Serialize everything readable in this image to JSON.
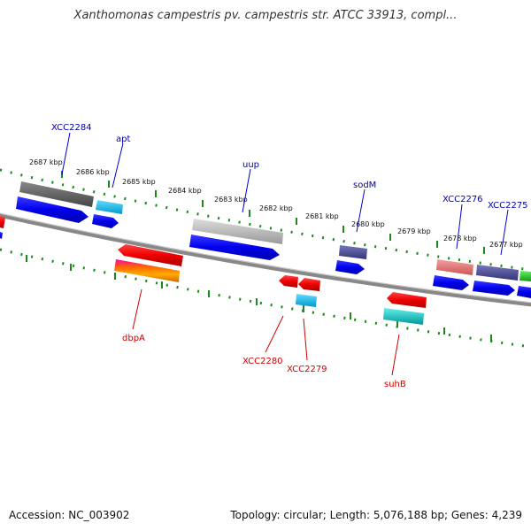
{
  "header": {
    "title": "Xanthomonas campestris pv. campestris str. ATCC 33913, compl..."
  },
  "footer": {
    "accession": "Accession: NC_003902",
    "summary": "Topology: circular; Length: 5,076,188 bp; Genes: 4,239"
  },
  "scale_ticks": [
    {
      "label": "2687 kbp"
    },
    {
      "label": "2686 kbp"
    },
    {
      "label": "2685 kbp"
    },
    {
      "label": "2684 kbp"
    },
    {
      "label": "2683 kbp"
    },
    {
      "label": "2682 kbp"
    },
    {
      "label": "2681 kbp"
    },
    {
      "label": "2680 kbp"
    },
    {
      "label": "2679 kbp"
    },
    {
      "label": "2678 kbp"
    },
    {
      "label": "2677 kbp"
    }
  ],
  "labels_forward": [
    {
      "text": "XCC2284",
      "color": "#0000aa"
    },
    {
      "text": "apt",
      "color": "#0000aa"
    },
    {
      "text": "uup",
      "color": "#0000aa"
    },
    {
      "text": "sodM",
      "color": "#0000aa"
    },
    {
      "text": "XCC2276",
      "color": "#0000aa"
    },
    {
      "text": "XCC2275",
      "color": "#0000aa"
    }
  ],
  "labels_reverse": [
    {
      "text": "dbpA",
      "color": "#cc0000"
    },
    {
      "text": "XCC2280",
      "color": "#cc0000"
    },
    {
      "text": "XCC2279",
      "color": "#cc0000"
    },
    {
      "text": "suhB",
      "color": "#cc0000"
    }
  ],
  "colors": {
    "backbone": "#777777",
    "scale": "#1a7a1a",
    "forward_label": "#0000aa",
    "reverse_label": "#cc0000"
  }
}
